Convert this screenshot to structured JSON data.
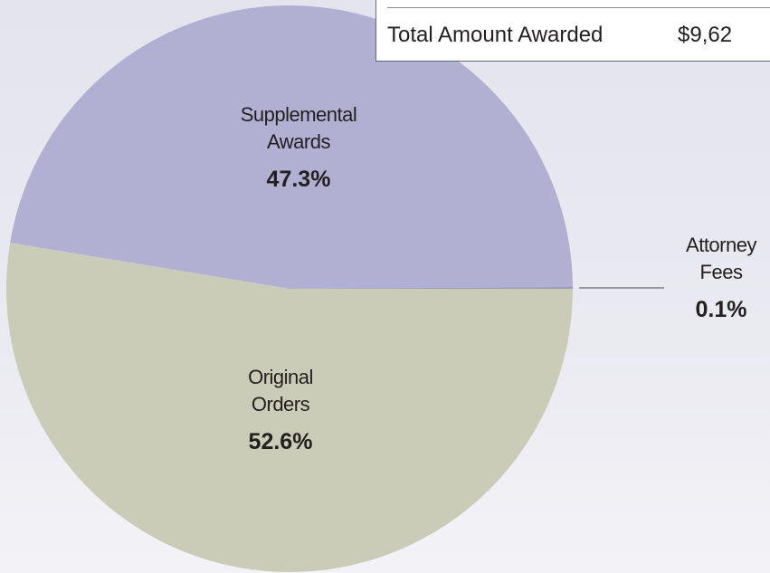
{
  "chart_data": {
    "type": "pie",
    "categories": [
      "Original Orders",
      "Supplemental Awards",
      "Attorney Fees"
    ],
    "values": [
      52.6,
      47.3,
      0.1
    ],
    "value_labels": [
      "52.6%",
      "47.3%",
      "0.1%"
    ],
    "colors": [
      "#cbccb7",
      "#b1b0d3",
      "#9a99b8"
    ]
  },
  "summary_box": {
    "label": "Total Amount Awarded",
    "value": "$9,62"
  }
}
